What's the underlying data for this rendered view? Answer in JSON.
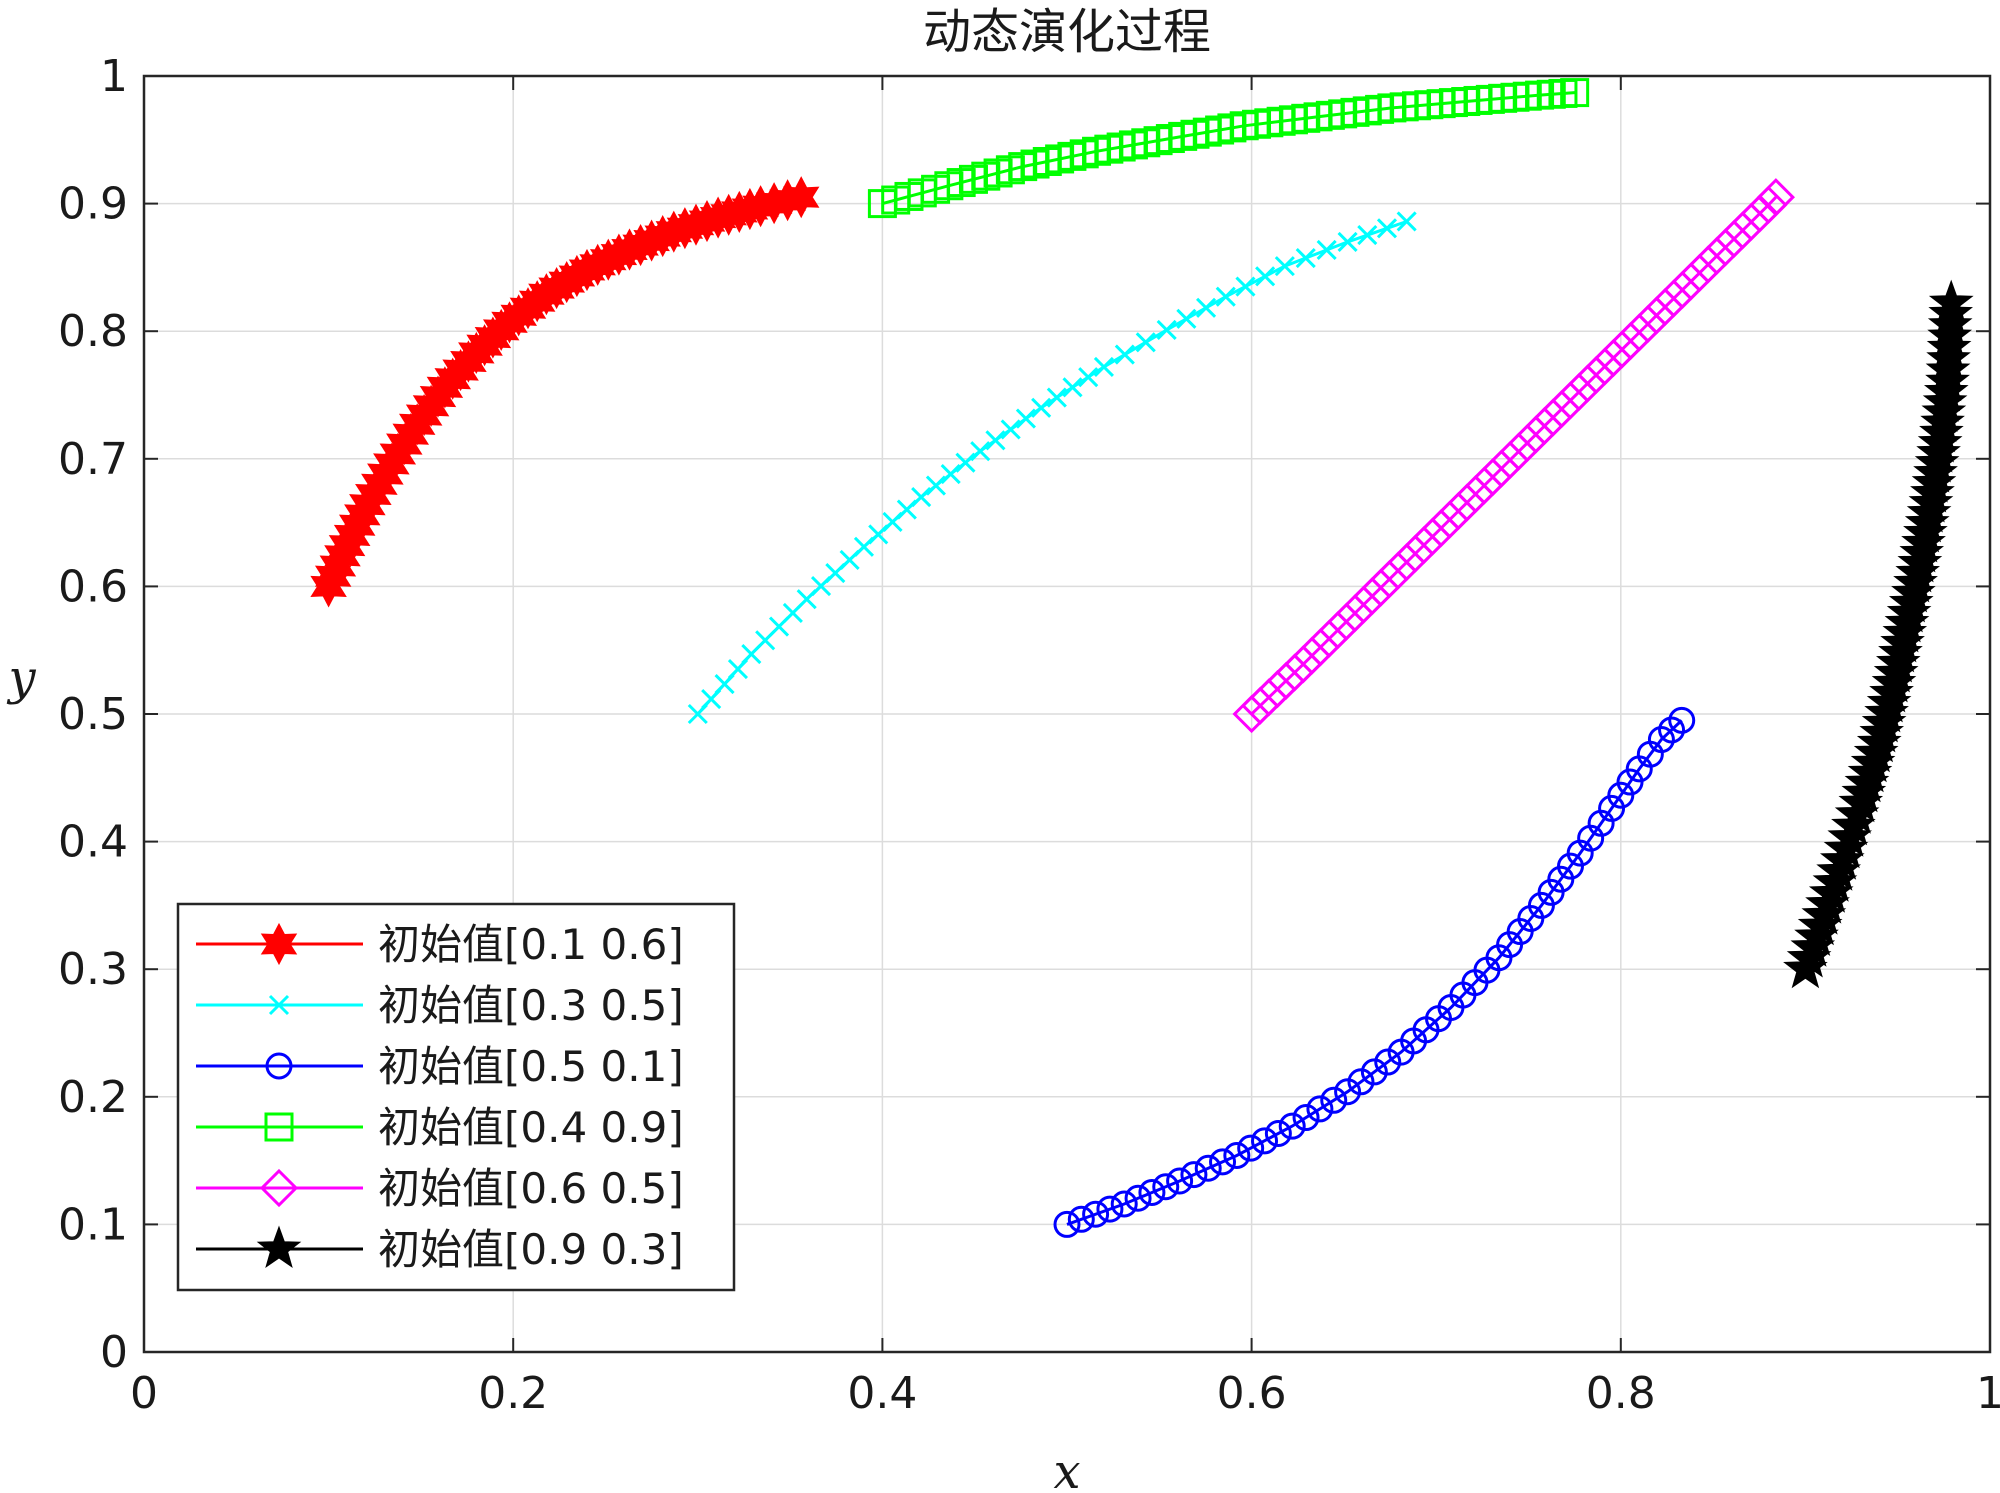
{
  "chart_data": {
    "type": "line",
    "title": "动态演化过程",
    "xlabel": "x",
    "ylabel": "y",
    "xlim": [
      0,
      1
    ],
    "ylim": [
      0,
      1
    ],
    "xticks": [
      "0",
      "0.2",
      "0.4",
      "0.6",
      "0.8",
      "1"
    ],
    "yticks": [
      "0",
      "0.1",
      "0.2",
      "0.3",
      "0.4",
      "0.5",
      "0.6",
      "0.7",
      "0.8",
      "0.9",
      "1"
    ],
    "grid": true,
    "legend_position": "lower-left",
    "series": [
      {
        "name": "初始值[0.1 0.6]",
        "color": "#ff0000",
        "marker": "hexagram",
        "x": [
          0.1,
          0.11,
          0.121,
          0.134,
          0.148,
          0.163,
          0.18,
          0.198,
          0.218,
          0.24,
          0.263,
          0.287,
          0.311,
          0.334,
          0.356
        ],
        "y": [
          0.6,
          0.632,
          0.664,
          0.696,
          0.727,
          0.756,
          0.783,
          0.807,
          0.829,
          0.848,
          0.864,
          0.878,
          0.889,
          0.898,
          0.905
        ]
      },
      {
        "name": "初始值[0.3 0.5]",
        "color": "#00ffff",
        "marker": "x",
        "x": [
          0.3,
          0.329,
          0.359,
          0.39,
          0.421,
          0.453,
          0.486,
          0.52,
          0.554,
          0.586,
          0.618,
          0.652,
          0.684
        ],
        "y": [
          0.5,
          0.547,
          0.59,
          0.631,
          0.67,
          0.706,
          0.74,
          0.772,
          0.801,
          0.827,
          0.851,
          0.87,
          0.886
        ]
      },
      {
        "name": "初始值[0.5 0.1]",
        "color": "#0000ff",
        "marker": "circle",
        "x": [
          0.5,
          0.531,
          0.561,
          0.592,
          0.622,
          0.652,
          0.681,
          0.708,
          0.734,
          0.757,
          0.778,
          0.795,
          0.81,
          0.822,
          0.833
        ],
        "y": [
          0.1,
          0.116,
          0.134,
          0.154,
          0.177,
          0.204,
          0.235,
          0.27,
          0.309,
          0.35,
          0.391,
          0.426,
          0.457,
          0.48,
          0.495
        ]
      },
      {
        "name": "初始值[0.4 0.9]",
        "color": "#00ff00",
        "marker": "square",
        "x": [
          0.4,
          0.436,
          0.476,
          0.516,
          0.556,
          0.596,
          0.636,
          0.676,
          0.716,
          0.756,
          0.775
        ],
        "y": [
          0.9,
          0.914,
          0.929,
          0.941,
          0.951,
          0.961,
          0.968,
          0.975,
          0.98,
          0.985,
          0.987
        ]
      },
      {
        "name": "初始值[0.6 0.5]",
        "color": "#ff00ff",
        "marker": "diamond",
        "x": [
          0.6,
          0.628,
          0.656,
          0.684,
          0.712,
          0.74,
          0.768,
          0.796,
          0.824,
          0.852,
          0.88,
          0.884
        ],
        "y": [
          0.5,
          0.539,
          0.579,
          0.619,
          0.659,
          0.699,
          0.739,
          0.779,
          0.819,
          0.859,
          0.899,
          0.905
        ]
      },
      {
        "name": "初始值[0.9 0.3]",
        "color": "#000000",
        "marker": "pentagram",
        "x": [
          0.9,
          0.91,
          0.92,
          0.93,
          0.94,
          0.948,
          0.955,
          0.962,
          0.968,
          0.973,
          0.977,
          0.979
        ],
        "y": [
          0.3,
          0.342,
          0.385,
          0.43,
          0.477,
          0.524,
          0.571,
          0.618,
          0.665,
          0.712,
          0.76,
          0.822
        ]
      }
    ]
  }
}
